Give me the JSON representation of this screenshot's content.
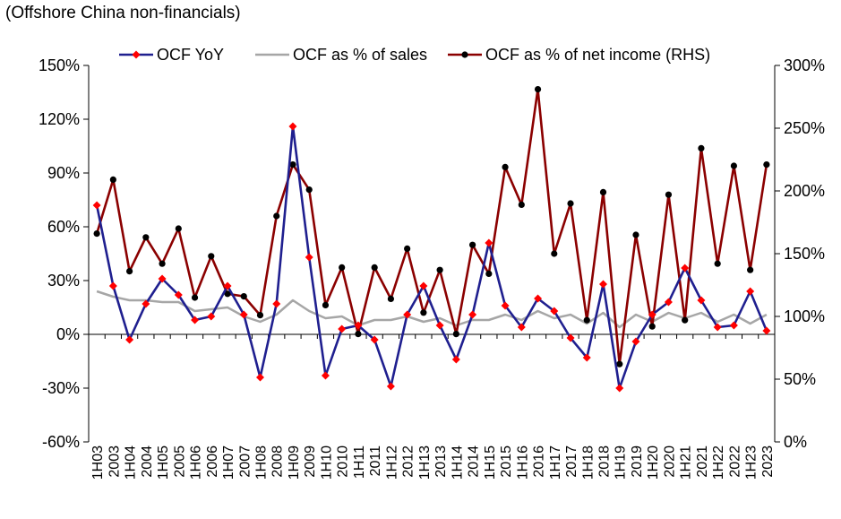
{
  "chart_data": {
    "type": "line",
    "title": "",
    "subtitle": "(Offshore China non-financials)",
    "categories": [
      "1H03",
      "2003",
      "1H04",
      "2004",
      "1H05",
      "2005",
      "1H06",
      "2006",
      "1H07",
      "2007",
      "1H08",
      "2008",
      "1H09",
      "2009",
      "1H10",
      "2010",
      "1H11",
      "2011",
      "1H12",
      "2012",
      "1H13",
      "2013",
      "1H14",
      "2014",
      "1H15",
      "2015",
      "1H16",
      "2016",
      "1H17",
      "2017",
      "1H18",
      "2018",
      "1H19",
      "2019",
      "1H20",
      "2020",
      "1H21",
      "2021",
      "1H22",
      "2022",
      "1H23",
      "2023"
    ],
    "left_axis": {
      "min": -60,
      "max": 150,
      "step": 30,
      "unit": "%",
      "tick_labels": [
        "-60%",
        "-30%",
        "0%",
        "30%",
        "60%",
        "90%",
        "120%",
        "150%"
      ]
    },
    "right_axis": {
      "min": 0,
      "max": 300,
      "step": 50,
      "unit": "%",
      "tick_labels": [
        "0%",
        "50%",
        "100%",
        "150%",
        "200%",
        "250%",
        "300%"
      ]
    },
    "series": [
      {
        "name": "OCF YoY",
        "axis": "left",
        "color": "#1f1f8f",
        "marker": "diamond",
        "marker_color": "#ff0000",
        "values": [
          72,
          27,
          -3,
          17,
          31,
          22,
          8,
          10,
          27,
          11,
          -24,
          17,
          116,
          43,
          -23,
          3,
          5,
          -3,
          -29,
          11,
          27,
          5,
          -14,
          11,
          51,
          16,
          4,
          20,
          13,
          -2,
          -13,
          28,
          -30,
          -4,
          11,
          18,
          37,
          19,
          4,
          5,
          24,
          2
        ]
      },
      {
        "name": "OCF as % of sales",
        "axis": "left",
        "color": "#a6a6a6",
        "marker": "none",
        "values": [
          24,
          21,
          19,
          19,
          18,
          18,
          13,
          14,
          15,
          10,
          7,
          11,
          19,
          13,
          9,
          10,
          5,
          8,
          8,
          10,
          7,
          9,
          5,
          8,
          8,
          11,
          8,
          13,
          9,
          11,
          6,
          12,
          4,
          11,
          7,
          12,
          9,
          12,
          7,
          11,
          6,
          11
        ]
      },
      {
        "name": "OCF as % of net income (RHS)",
        "axis": "right",
        "color": "#8b0000",
        "marker": "circle",
        "marker_color": "#000000",
        "values": [
          166,
          209,
          136,
          163,
          142,
          170,
          115,
          148,
          118,
          116,
          101,
          180,
          221,
          201,
          109,
          139,
          86,
          139,
          114,
          154,
          103,
          137,
          86,
          157,
          134,
          219,
          189,
          281,
          150,
          190,
          97,
          199,
          62,
          165,
          92,
          197,
          97,
          234,
          142,
          220,
          137,
          221
        ]
      }
    ],
    "legend": {
      "position": "top",
      "entries": [
        "OCF YoY",
        "OCF as % of sales",
        "OCF as % of net income (RHS)"
      ]
    },
    "grid": false
  }
}
